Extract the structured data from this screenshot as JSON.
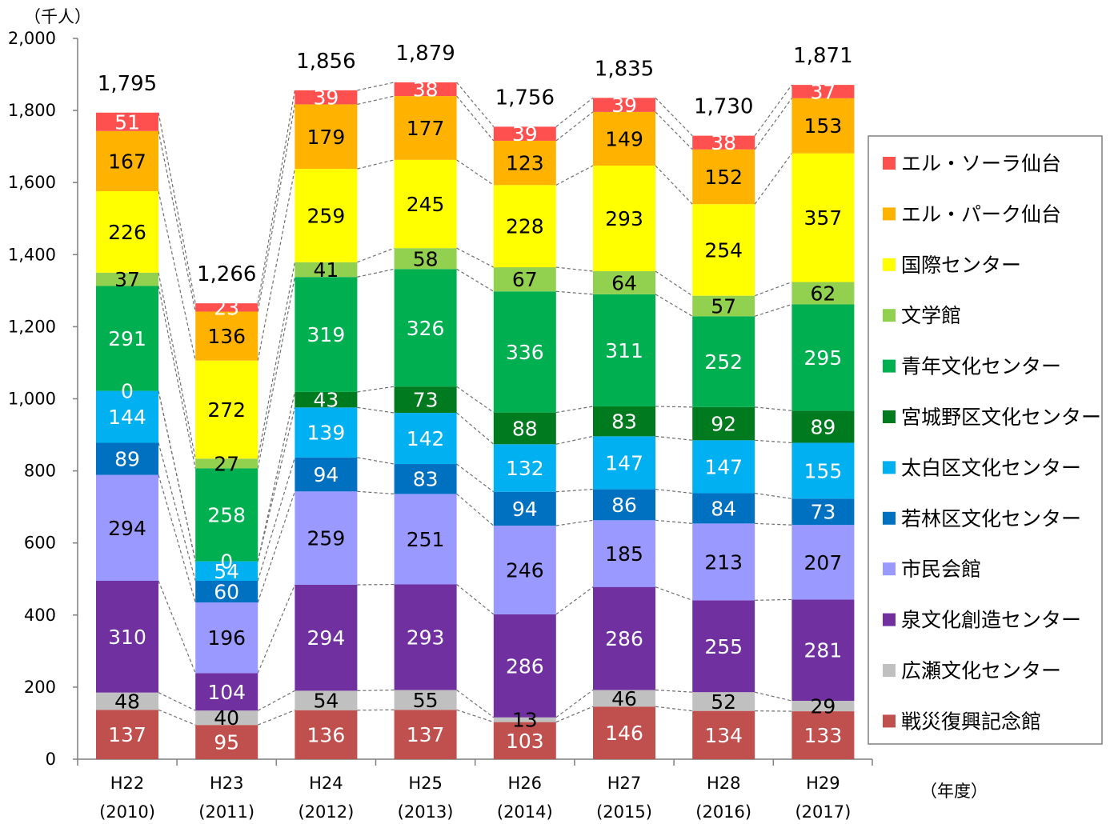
{
  "chart_data": {
    "type": "bar",
    "stacked": true,
    "unit_label": "（千人）",
    "x_unit_label": "（年度）",
    "title": "",
    "xlabel": "",
    "ylabel": "",
    "ylim": [
      0,
      2000
    ],
    "y_ticks": [
      "0",
      "200",
      "400",
      "600",
      "800",
      "1,000",
      "1,200",
      "1,400",
      "1,600",
      "1,800",
      "2,000"
    ],
    "grid": false,
    "legend_position": "right",
    "categories": [
      {
        "era": "H22",
        "year": "(2010)"
      },
      {
        "era": "H23",
        "year": "(2011)"
      },
      {
        "era": "H24",
        "year": "(2012)"
      },
      {
        "era": "H25",
        "year": "(2013)"
      },
      {
        "era": "H26",
        "year": "(2014)"
      },
      {
        "era": "H27",
        "year": "(2015)"
      },
      {
        "era": "H28",
        "year": "(2016)"
      },
      {
        "era": "H29",
        "year": "(2017)"
      }
    ],
    "totals": [
      "1,795",
      "1,266",
      "1,856",
      "1,879",
      "1,756",
      "1,835",
      "1,730",
      "1,871"
    ],
    "series": [
      {
        "name": "戦災復興記念館",
        "color": "#C0504D",
        "label_color": "#ffffff",
        "values": [
          137,
          95,
          136,
          137,
          103,
          146,
          134,
          133
        ]
      },
      {
        "name": "広瀬文化センター",
        "color": "#C0C0C0",
        "label_color": "#000000",
        "values": [
          48,
          40,
          54,
          55,
          13,
          46,
          52,
          29
        ]
      },
      {
        "name": "泉文化創造センター",
        "color": "#7030A0",
        "label_color": "#ffffff",
        "values": [
          310,
          104,
          294,
          293,
          286,
          286,
          255,
          281
        ]
      },
      {
        "name": "市民会館",
        "color": "#9999FF",
        "label_color": "#000000",
        "values": [
          294,
          196,
          259,
          251,
          246,
          185,
          213,
          207
        ]
      },
      {
        "name": "若林区文化センター",
        "color": "#0070C0",
        "label_color": "#ffffff",
        "values": [
          89,
          60,
          94,
          83,
          94,
          86,
          84,
          73
        ]
      },
      {
        "name": "太白区文化センター",
        "color": "#00B0F0",
        "label_color": "#ffffff",
        "values": [
          144,
          54,
          139,
          142,
          132,
          147,
          147,
          155
        ]
      },
      {
        "name": "宮城野区文化センター",
        "color": "#007A1E",
        "label_color": "#ffffff",
        "values": [
          0,
          0,
          43,
          73,
          88,
          83,
          92,
          89
        ]
      },
      {
        "name": "青年文化センター",
        "color": "#00B050",
        "label_color": "#ffffff",
        "values": [
          291,
          258,
          319,
          326,
          336,
          311,
          252,
          295
        ]
      },
      {
        "name": "文学館",
        "color": "#92D050",
        "label_color": "#000000",
        "values": [
          37,
          27,
          41,
          58,
          67,
          64,
          57,
          62
        ]
      },
      {
        "name": "国際センター",
        "color": "#FFFF00",
        "label_color": "#000000",
        "values": [
          226,
          272,
          259,
          245,
          228,
          293,
          254,
          357
        ]
      },
      {
        "name": "エル・パーク仙台",
        "color": "#FFB300",
        "label_color": "#000000",
        "values": [
          167,
          136,
          179,
          177,
          123,
          149,
          152,
          153
        ]
      },
      {
        "name": "エル・ソーラ仙台",
        "color": "#FF5050",
        "label_color": "#ffffff",
        "values": [
          51,
          23,
          39,
          38,
          39,
          39,
          38,
          37
        ]
      }
    ]
  }
}
